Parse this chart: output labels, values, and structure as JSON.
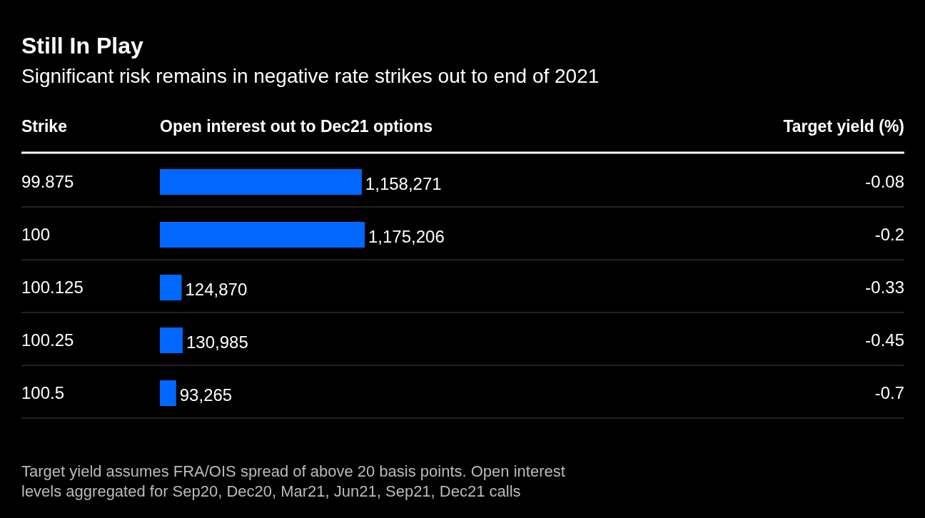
{
  "chart_data": {
    "type": "bar",
    "orientation": "horizontal",
    "title": "Still In Play",
    "subtitle": "Significant risk remains in negative rate strikes out to end of 2021",
    "ylabel": "Strike",
    "xlabel": "Open interest out to Dec21 options",
    "categories": [
      "99.875",
      "100",
      "100.125",
      "100.25",
      "100.5"
    ],
    "values": [
      1158271,
      1175206,
      124870,
      130985,
      93265
    ],
    "y2_categories": [
      "-0.08",
      "-0.2",
      "-0.33",
      "-0.45",
      "-0.7"
    ],
    "value_labels": [
      "1,158,271",
      "1,175,206",
      "124,870",
      "130,985",
      "93,265"
    ],
    "color": "#0068ff",
    "annotations": [
      "Target yield (%)",
      "Target yield assumes FRA/OIS spread of above 20 basis points. Open interest levels aggregated for Sep20, Dec20, Mar21, Jun21, Sep21, Dec21 calls"
    ]
  }
}
